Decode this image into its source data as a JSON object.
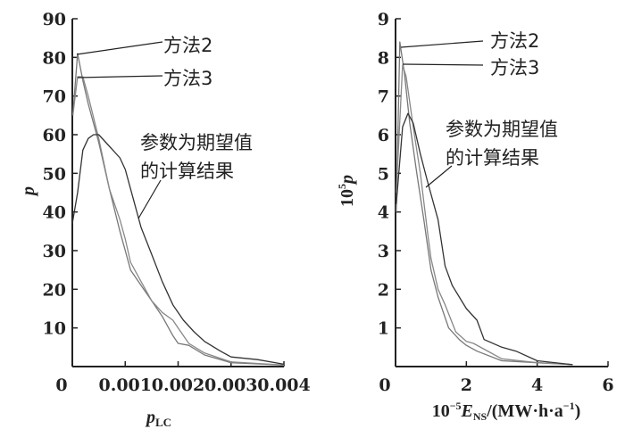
{
  "chart_data": [
    {
      "type": "line",
      "title": "",
      "xlabel": "p",
      "xlabel_sub": "LC",
      "ylabel": "p",
      "xlim": [
        0,
        0.004
      ],
      "ylim": [
        0,
        90
      ],
      "xticks": [
        "0.001",
        "0.002",
        "0.003",
        "0.004"
      ],
      "xtick_values": [
        0.001,
        0.002,
        0.003,
        0.004
      ],
      "yticks": [
        "10",
        "20",
        "30",
        "40",
        "50",
        "60",
        "70",
        "80",
        "90"
      ],
      "ytick_values": [
        10,
        20,
        30,
        40,
        50,
        60,
        70,
        80,
        90
      ],
      "origin_label": "0",
      "series": [
        {
          "name": "方法2",
          "color": "#777777",
          "x": [
            1e-05,
            0.0001,
            0.0002,
            0.0003,
            0.0005,
            0.0007,
            0.0009,
            0.001,
            0.0011,
            0.0013,
            0.0015,
            0.0017,
            0.0019,
            0.002,
            0.0022,
            0.0025,
            0.003,
            0.0035,
            0.004
          ],
          "y": [
            65,
            81,
            74,
            68,
            58,
            46,
            35,
            30,
            25,
            21,
            17,
            13,
            8,
            6,
            5.5,
            3,
            1,
            0.7,
            0.4
          ]
        },
        {
          "name": "方法3",
          "color": "#888888",
          "x": [
            1e-05,
            0.0001,
            0.0002,
            0.0003,
            0.0005,
            0.0007,
            0.0009,
            0.001,
            0.0011,
            0.0013,
            0.0015,
            0.0017,
            0.0019,
            0.002,
            0.0022,
            0.0025,
            0.003,
            0.0035,
            0.004
          ],
          "y": [
            65,
            75,
            75,
            70,
            59,
            46,
            38,
            33,
            27,
            22,
            17,
            14,
            12,
            10,
            6,
            3.5,
            1.2,
            0.8,
            0.4
          ]
        },
        {
          "name": "参数为期望值的计算结果",
          "color": "#333333",
          "x": [
            0,
            0.0001,
            0.0002,
            0.0003,
            0.0004,
            0.0005,
            0.0007,
            0.0009,
            0.001,
            0.0011,
            0.0012,
            0.0013,
            0.0015,
            0.0017,
            0.0019,
            0.0021,
            0.0023,
            0.0025,
            0.0028,
            0.003,
            0.0035,
            0.004
          ],
          "y": [
            37,
            45,
            56,
            59,
            60,
            60,
            57,
            54,
            51,
            46,
            41,
            36,
            29,
            22,
            16,
            12,
            9,
            6.5,
            4,
            2.5,
            1.8,
            0.6
          ]
        }
      ],
      "annotations": [
        "方法2",
        "方法3",
        "参数为期望值",
        "的计算结果"
      ]
    },
    {
      "type": "line",
      "title": "",
      "xlabel": "10^-5 E_NS/(MW·h·a^-1)",
      "xlabel_parts": {
        "pre": "10",
        "exp": "−5",
        "var": "E",
        "sub": "NS",
        "unit": "/(MW·h·a",
        "unit_exp": "−1",
        "close": ")"
      },
      "ylabel": "10^5 p",
      "ylabel_parts": {
        "base": "10",
        "exp": "5",
        "var": "p"
      },
      "xlim": [
        0,
        6
      ],
      "ylim": [
        0,
        9
      ],
      "xticks": [
        "2",
        "4",
        "6"
      ],
      "xtick_values": [
        2,
        4,
        6
      ],
      "yticks": [
        "1",
        "2",
        "3",
        "4",
        "5",
        "6",
        "7",
        "8",
        "9"
      ],
      "ytick_values": [
        1,
        2,
        3,
        4,
        5,
        6,
        7,
        8,
        9
      ],
      "origin_label": "0",
      "series": [
        {
          "name": "方法2",
          "color": "#777777",
          "x": [
            0.02,
            0.12,
            0.25,
            0.4,
            0.6,
            0.8,
            1.0,
            1.2,
            1.5,
            1.8,
            2.0,
            2.3,
            3,
            4,
            5
          ],
          "y": [
            4,
            8.4,
            7.6,
            6.3,
            5,
            3.8,
            2.5,
            1.8,
            1.0,
            0.7,
            0.55,
            0.4,
            0.15,
            0.1,
            0.05
          ]
        },
        {
          "name": "方法3",
          "color": "#888888",
          "x": [
            0.02,
            0.2,
            0.3,
            0.5,
            0.7,
            0.9,
            1.0,
            1.2,
            1.4,
            1.7,
            2.0,
            2.2,
            2.5,
            3,
            4,
            5
          ],
          "y": [
            4.5,
            7.8,
            7.5,
            6.2,
            5,
            3.5,
            2.8,
            2.0,
            1.6,
            0.9,
            0.65,
            0.6,
            0.45,
            0.2,
            0.1,
            0.05
          ]
        },
        {
          "name": "参数为期望值的计算结果",
          "color": "#333333",
          "x": [
            0.02,
            0.2,
            0.35,
            0.5,
            0.7,
            0.9,
            1.2,
            1.4,
            1.6,
            2.0,
            2.3,
            2.5,
            3,
            3.4,
            4,
            5
          ],
          "y": [
            4.2,
            6.2,
            6.55,
            6.3,
            5.5,
            4.8,
            3.8,
            2.6,
            2.1,
            1.5,
            1.2,
            0.7,
            0.5,
            0.4,
            0.15,
            0.05
          ]
        }
      ],
      "annotations": [
        "方法2",
        "方法3",
        "参数为期望值",
        "的计算结果"
      ]
    }
  ]
}
